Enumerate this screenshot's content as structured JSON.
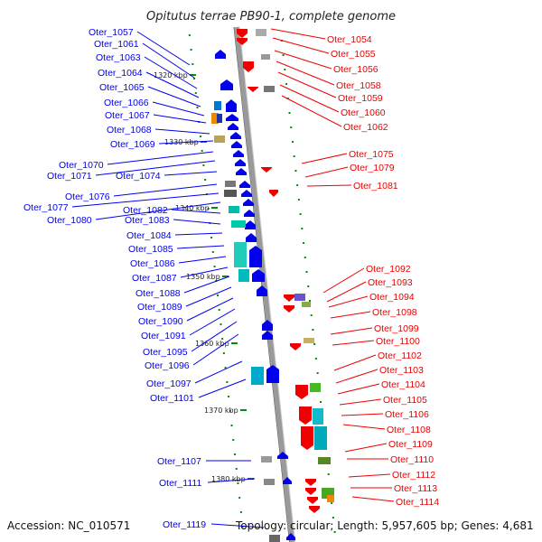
{
  "title": "Opitutus terrae PB90-1, complete genome",
  "footer": {
    "accession": "Accession: NC_010571",
    "summary": "Topology: circular; Length: 5,957,605 bp; Genes: 4,681"
  },
  "colors": {
    "forward": "#0000ee",
    "reverse": "#ee0000",
    "backbone": "#9a9a9a",
    "tick": "#0a8a0a"
  },
  "scale_labels": [
    "1320 kbp",
    "1330 kbp",
    "1340 kbp",
    "1350 kbp",
    "1360 kbp",
    "1370 kbp",
    "1380 kbp"
  ],
  "left_genes": [
    "Oter_1057",
    "Oter_1061",
    "Oter_1063",
    "Oter_1064",
    "Oter_1065",
    "Oter_1066",
    "Oter_1067",
    "Oter_1068",
    "Oter_1069",
    "Oter_1070",
    "Oter_1071",
    "Oter_1074",
    "Oter_1076",
    "Oter_1077",
    "Oter_1080",
    "Oter_1082",
    "Oter_1083",
    "Oter_1084",
    "Oter_1085",
    "Oter_1086",
    "Oter_1087",
    "Oter_1088",
    "Oter_1089",
    "Oter_1090",
    "Oter_1091",
    "Oter_1095",
    "Oter_1096",
    "Oter_1097",
    "Oter_1101",
    "Oter_1107",
    "Oter_1111",
    "Oter_1119"
  ],
  "right_genes": [
    "Oter_1054",
    "Oter_1055",
    "Oter_1056",
    "Oter_1058",
    "Oter_1059",
    "Oter_1060",
    "Oter_1062",
    "Oter_1075",
    "Oter_1079",
    "Oter_1081",
    "Oter_1092",
    "Oter_1093",
    "Oter_1094",
    "Oter_1098",
    "Oter_1099",
    "Oter_1100",
    "Oter_1102",
    "Oter_1103",
    "Oter_1104",
    "Oter_1105",
    "Oter_1106",
    "Oter_1108",
    "Oter_1109",
    "Oter_1110",
    "Oter_1112",
    "Oter_1113",
    "Oter_1114"
  ]
}
